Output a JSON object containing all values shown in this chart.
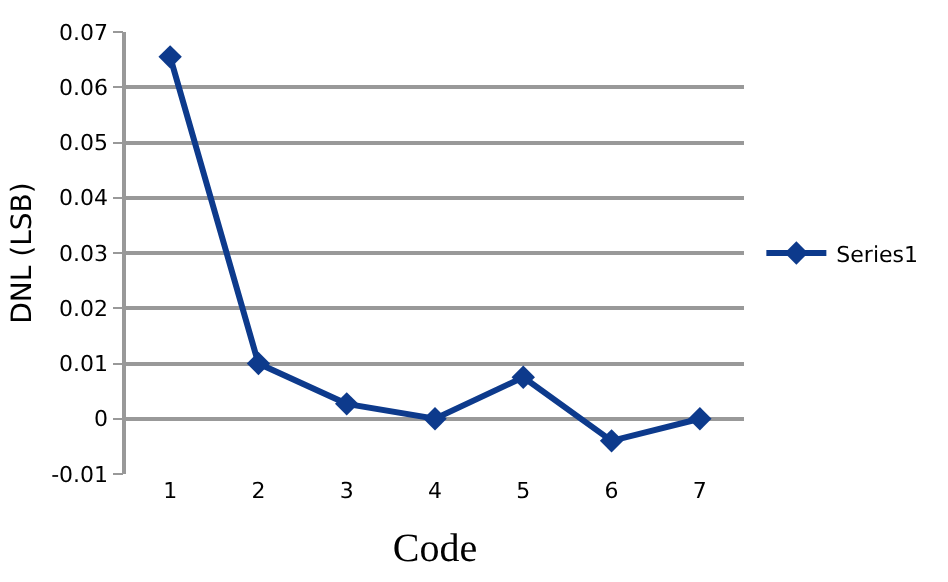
{
  "chart_data": {
    "type": "line",
    "xlabel": "Code",
    "ylabel": "DNL (LSB)",
    "categories": [
      "1",
      "2",
      "3",
      "4",
      "5",
      "6",
      "7"
    ],
    "series": [
      {
        "name": "Series1",
        "color": "#0d3a8c",
        "values": [
          0.0655,
          0.01,
          0.0027,
          0,
          0.0075,
          -0.004,
          0
        ]
      }
    ],
    "ylim": [
      -0.01,
      0.07
    ],
    "yticks": [
      -0.01,
      0,
      0.01,
      0.02,
      0.03,
      0.04,
      0.05,
      0.06,
      0.07
    ],
    "grid": "y",
    "legend": "right",
    "marker": "diamond",
    "line_style": "solid"
  }
}
